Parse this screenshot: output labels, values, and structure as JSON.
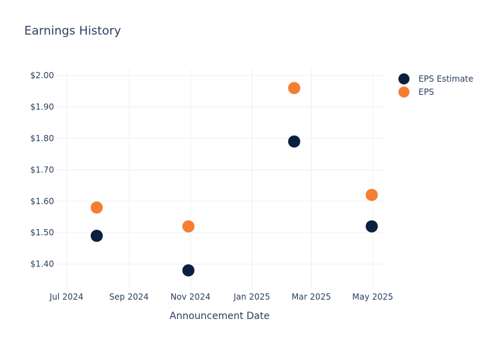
{
  "chart_data": {
    "type": "scatter",
    "title": "Earnings History",
    "xlabel": "Announcement Date",
    "ylabel": "",
    "x_ticks": [
      {
        "date": "2024-07-01",
        "label": "Jul 2024"
      },
      {
        "date": "2024-09-01",
        "label": "Sep 2024"
      },
      {
        "date": "2024-11-01",
        "label": "Nov 2024"
      },
      {
        "date": "2025-01-01",
        "label": "Jan 2025"
      },
      {
        "date": "2025-03-01",
        "label": "Mar 2025"
      },
      {
        "date": "2025-05-01",
        "label": "May 2025"
      }
    ],
    "y_ticks": [
      {
        "value": 1.4,
        "label": "$1.40"
      },
      {
        "value": 1.5,
        "label": "$1.50"
      },
      {
        "value": 1.6,
        "label": "$1.60"
      },
      {
        "value": 1.7,
        "label": "$1.70"
      },
      {
        "value": 1.8,
        "label": "$1.80"
      },
      {
        "value": 1.9,
        "label": "$1.90"
      },
      {
        "value": 2.0,
        "label": "$2.00"
      }
    ],
    "xlim": [
      "2024-06-20",
      "2025-05-12"
    ],
    "ylim": [
      1.32,
      2.02
    ],
    "grid": true,
    "legend_position": "top-right",
    "series": [
      {
        "name": "EPS Estimate",
        "color": "#0b1f3f",
        "points": [
          {
            "x": "2024-07-31",
            "y": 1.49
          },
          {
            "x": "2024-10-30",
            "y": 1.38
          },
          {
            "x": "2025-02-12",
            "y": 1.79
          },
          {
            "x": "2025-04-30",
            "y": 1.52
          }
        ]
      },
      {
        "name": "EPS",
        "color": "#f47f30",
        "points": [
          {
            "x": "2024-07-31",
            "y": 1.58
          },
          {
            "x": "2024-10-30",
            "y": 1.52
          },
          {
            "x": "2025-02-12",
            "y": 1.96
          },
          {
            "x": "2025-04-30",
            "y": 1.62
          }
        ]
      }
    ]
  }
}
